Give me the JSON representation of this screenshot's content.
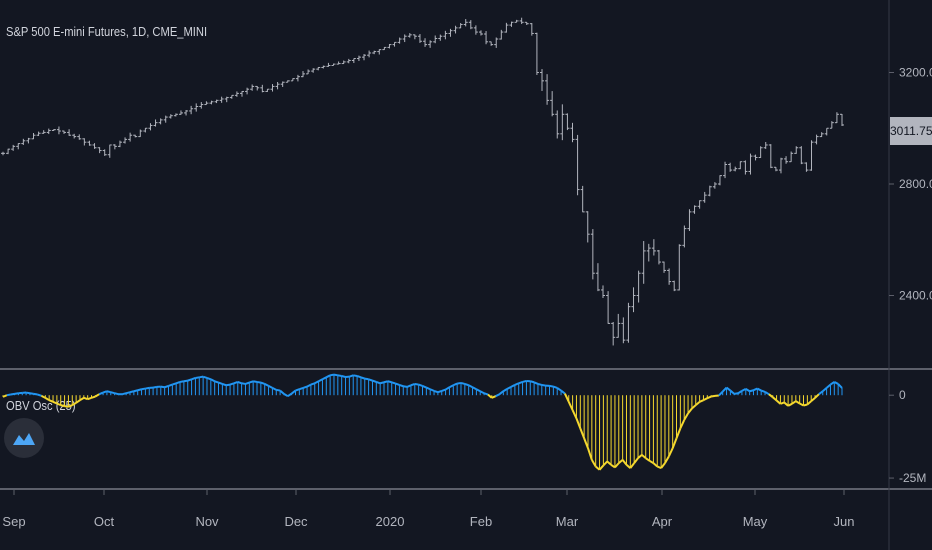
{
  "chart_data": [
    {
      "type": "bar",
      "title": "S&P 500 E-mini Futures, 1D, CME_MINI",
      "y_axis": {
        "ticks": [
          2400,
          2800,
          3200
        ],
        "tick_labels": [
          "2400.00",
          "2800.00",
          "3200.00"
        ],
        "ylim": [
          2140,
          3460
        ],
        "side": "right"
      },
      "x_axis": {
        "tick_labels": [
          "Sep",
          "Oct",
          "Nov",
          "Dec",
          "2020",
          "Feb",
          "Mar",
          "Apr",
          "May",
          "Jun"
        ]
      },
      "last_price": "3011.75",
      "series": [
        {
          "values": [
            2910,
            2925,
            2935,
            2945,
            2955,
            2962,
            2975,
            2982,
            2985,
            2992,
            2995,
            2990,
            2985,
            2975,
            2970,
            2962,
            2950,
            2940,
            2930,
            2920,
            2905,
            2940,
            2935,
            2950,
            2960,
            2975,
            2970,
            2990,
            3000,
            3010,
            3020,
            3030,
            3040,
            3045,
            3050,
            3055,
            3062,
            3070,
            3078,
            3085,
            3090,
            3095,
            3100,
            3105,
            3110,
            3118,
            3125,
            3132,
            3140,
            3150,
            3145,
            3132,
            3140,
            3150,
            3158,
            3165,
            3170,
            3178,
            3185,
            3195,
            3205,
            3212,
            3218,
            3222,
            3225,
            3230,
            3232,
            3238,
            3243,
            3250,
            3255,
            3262,
            3270,
            3275,
            3282,
            3290,
            3300,
            3308,
            3320,
            3330,
            3335,
            3330,
            3312,
            3300,
            3310,
            3322,
            3330,
            3340,
            3350,
            3360,
            3372,
            3380,
            3360,
            3345,
            3338,
            3310,
            3300,
            3320,
            3345,
            3370,
            3380,
            3385,
            3380,
            3375,
            3340,
            3200,
            3170,
            3100,
            3050,
            2980,
            3050,
            3000,
            2960,
            2780,
            2700,
            2620,
            2480,
            2420,
            2400,
            2300,
            2250,
            2300,
            2240,
            2360,
            2400,
            2480,
            2560,
            2570,
            2560,
            2520,
            2490,
            2450,
            2420,
            2580,
            2640,
            2700,
            2720,
            2740,
            2760,
            2790,
            2800,
            2830,
            2870,
            2850,
            2855,
            2880,
            2845,
            2900,
            2895,
            2930,
            2940,
            2860,
            2850,
            2890,
            2880,
            2910,
            2930,
            2875,
            2850,
            2950,
            2970,
            2980,
            3000,
            3020,
            3050,
            3011.75
          ]
        }
      ]
    },
    {
      "type": "area",
      "title": "OBV Osc (25)",
      "y_axis": {
        "tick_labels": [
          "0",
          "-25M"
        ],
        "ticks": [
          0,
          -25
        ],
        "unit": "M",
        "ylim": [
          -28,
          7
        ]
      },
      "colors": {
        "positive": "#2196f3",
        "negative": "#f5d82e"
      },
      "series": [
        {
          "values": [
            -0.5,
            0,
            0.2,
            0.4,
            0.6,
            0.7,
            0.8,
            0.6,
            0.4,
            0.2,
            -0.2,
            -0.8,
            -1.5,
            -2,
            -2.5,
            -3,
            -3.3,
            -3.5,
            -3,
            -2.3,
            -1.5,
            -0.8,
            -1.2,
            -0.8,
            -0.4,
            0.3,
            0.8,
            1.2,
            0.9,
            0.6,
            0.3,
            0.3,
            0.6,
            0.9,
            1.2,
            1.5,
            1.8,
            2,
            2.2,
            2.3,
            2.5,
            2.6,
            2.4,
            2.8,
            3.2,
            3.6,
            4,
            4.2,
            4.4,
            4.8,
            5.2,
            5.4,
            5.6,
            5.2,
            4.8,
            4.2,
            3.8,
            3.4,
            3,
            3.2,
            3.6,
            4,
            3.6,
            3.4,
            3.8,
            4.2,
            4,
            3.8,
            3.4,
            2.8,
            2.2,
            1.6,
            1.4,
            0.4,
            -0.3,
            0.5,
            1.4,
            1.8,
            2.2,
            2.6,
            3.2,
            3.6,
            4.2,
            4.8,
            5.4,
            6,
            6.2,
            6,
            5.8,
            5.5,
            5.6,
            6,
            5.8,
            5.4,
            5,
            4.8,
            4.4,
            4,
            3.6,
            3.9,
            4.2,
            3.9,
            3.5,
            3.1,
            2.7,
            2.5,
            3,
            3.4,
            3.2,
            2.8,
            2.3,
            1.8,
            1.3,
            0.9,
            1.3,
            1.7,
            2.4,
            3,
            3.5,
            3.7,
            3.4,
            3,
            2.4,
            1.8,
            1.2,
            0.6,
            0.2,
            -0.8,
            -0.3,
            0.3,
            1.2,
            1.9,
            2.5,
            3.1,
            3.6,
            4,
            4.3,
            4.2,
            3.9,
            3.4,
            3.1,
            2.9,
            2.8,
            2.6,
            2.2,
            1.4,
            0.5,
            -2,
            -4.5,
            -7,
            -10,
            -13,
            -16,
            -19.5,
            -21.5,
            -22.5,
            -21.2,
            -20,
            -21,
            -21.8,
            -20.5,
            -19.5,
            -21,
            -22,
            -20.5,
            -19,
            -18,
            -19,
            -19.8,
            -20.5,
            -21.5,
            -22,
            -20.5,
            -18.5,
            -16,
            -13,
            -10,
            -7.5,
            -5.5,
            -4,
            -3,
            -2,
            -1.5,
            -0.9,
            -0.4,
            -0.2,
            -0.1,
            1.1,
            2.3,
            1.4,
            0.4,
            0.6,
            1.3,
            1.9,
            1.2,
            1.5,
            2,
            1.4,
            1,
            0.3,
            -0.6,
            -1.6,
            -2.6,
            -2.2,
            -3.2,
            -2.6,
            -1.8,
            -2.5,
            -3.1,
            -2.8,
            -1.8,
            -0.8,
            0.3,
            1.2,
            2.2,
            3.2,
            4,
            3.4,
            2.2
          ]
        }
      ]
    }
  ]
}
